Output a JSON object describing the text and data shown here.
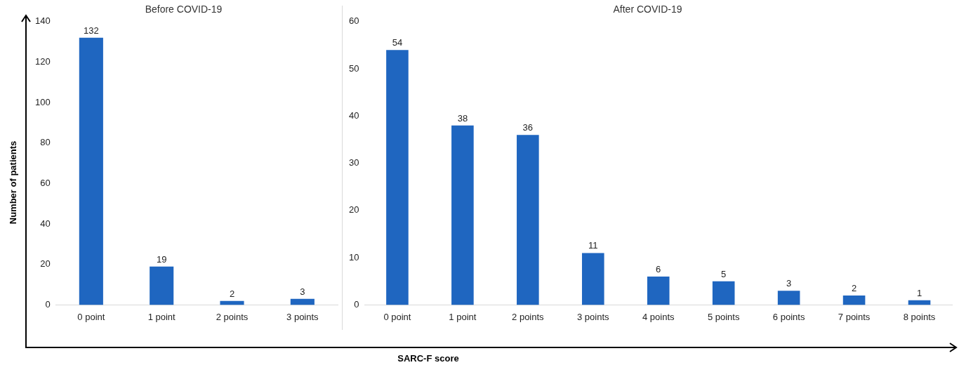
{
  "chart_data": [
    {
      "type": "bar",
      "title": "Before COVID-19",
      "ylabel": "Number of patients",
      "categories": [
        "0 point",
        "1 point",
        "2 points",
        "3 points"
      ],
      "values": [
        132,
        19,
        2,
        3
      ],
      "color": "#1f66c0",
      "ylim": [
        0,
        140
      ],
      "yticks": [
        0,
        20,
        40,
        60,
        80,
        100,
        120,
        140
      ],
      "grid": false,
      "data_labels": true
    },
    {
      "type": "bar",
      "title": "After COVID-19",
      "xlabel": "SARC-F score",
      "categories": [
        "0 point",
        "1 point",
        "2 points",
        "3 points",
        "4 points",
        "5 points",
        "6 points",
        "7 points",
        "8 points"
      ],
      "values": [
        54,
        38,
        36,
        11,
        6,
        5,
        3,
        2,
        1
      ],
      "color": "#1f66c0",
      "ylim": [
        0,
        60
      ],
      "yticks": [
        0,
        10,
        20,
        30,
        40,
        50,
        60
      ],
      "grid": false,
      "data_labels": true
    }
  ]
}
